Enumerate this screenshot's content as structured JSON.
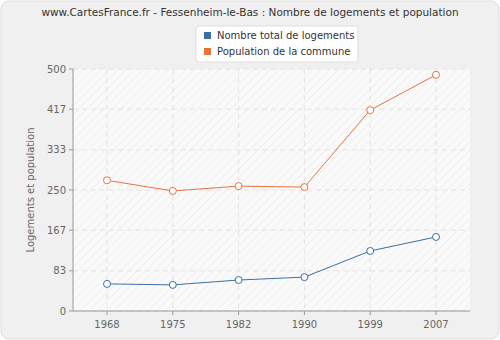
{
  "chart_data": {
    "type": "line",
    "title": "www.CartesFrance.fr - Fessenheim-le-Bas : Nombre de logements et population",
    "y_label": "Logements et population",
    "categories": [
      "1968",
      "1975",
      "1982",
      "1990",
      "1999",
      "2007"
    ],
    "series": [
      {
        "name": "Nombre total de logements",
        "color": "#3c6ea3",
        "marker": "circle",
        "values": [
          56,
          54,
          64,
          70,
          124,
          153
        ]
      },
      {
        "name": "Population de la commune",
        "color": "#e8733f",
        "marker": "circle",
        "values": [
          270,
          248,
          258,
          256,
          415,
          488
        ]
      }
    ],
    "ylim": [
      0,
      500
    ],
    "yticks": [
      0,
      83,
      167,
      250,
      333,
      417,
      500
    ],
    "grid": true,
    "legend": "top"
  }
}
